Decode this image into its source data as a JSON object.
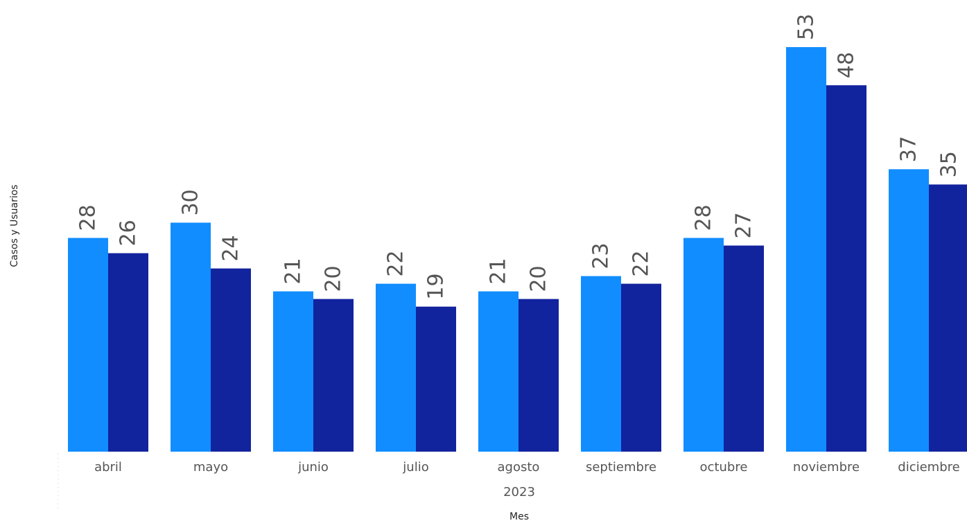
{
  "chart_data": {
    "type": "bar",
    "title": "",
    "xlabel": "Mes",
    "ylabel": "Casos y Usuarios",
    "year_label": "2023",
    "categories": [
      "abril",
      "mayo",
      "junio",
      "julio",
      "agosto",
      "septiembre",
      "octubre",
      "noviembre",
      "diciembre"
    ],
    "series": [
      {
        "values": [
          28,
          30,
          21,
          22,
          21,
          23,
          28,
          53,
          37
        ],
        "color": "#118DFF"
      },
      {
        "values": [
          26,
          24,
          20,
          19,
          20,
          22,
          27,
          48,
          35
        ],
        "color": "#12239E"
      }
    ],
    "ylim": [
      0,
      53
    ],
    "grid": false,
    "legend": "none"
  }
}
